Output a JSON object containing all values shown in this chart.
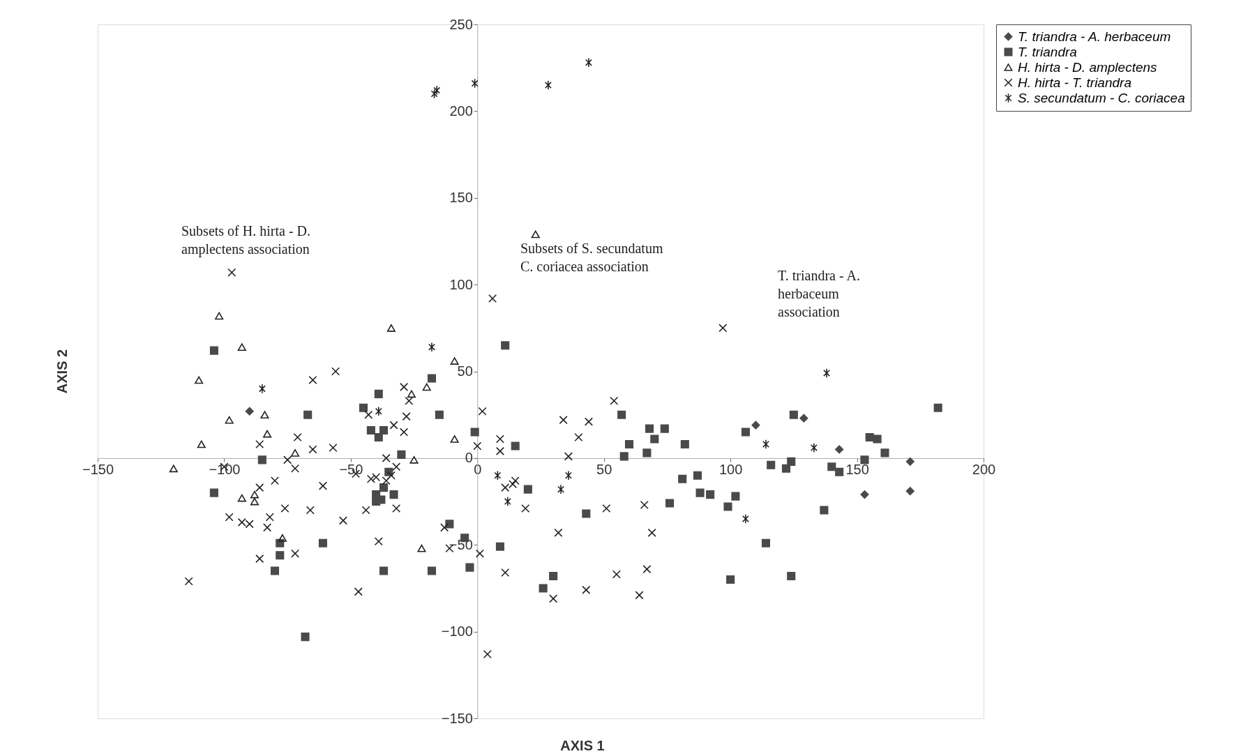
{
  "chart_data": {
    "type": "scatter",
    "xlabel": "AXIS 1",
    "ylabel": "AXIS 2",
    "xlim": [
      -150,
      200
    ],
    "ylim": [
      -150,
      250
    ],
    "xticks": [
      -150,
      -100,
      -50,
      0,
      50,
      100,
      150,
      200
    ],
    "yticks": [
      -150,
      -100,
      -50,
      0,
      50,
      100,
      150,
      200,
      250
    ],
    "grid": false,
    "legend": "right",
    "annotations": [
      "Subsets of H. hirta - D. amplectens association",
      "Subsets of S. secundatum C. coriacea association",
      "T. triandra - A. herbaceum association"
    ],
    "series": [
      {
        "name": "T. triandra - A. herbaceum",
        "color": "#4a4a4a",
        "marker": "diamond",
        "x": [
          -90,
          110,
          129,
          143,
          153,
          171,
          171
        ],
        "values": [
          27,
          19,
          23,
          5,
          -21,
          -2,
          -19
        ]
      },
      {
        "name": "T. triandra",
        "color": "#4a4a4a",
        "marker": "square",
        "x": [
          -104,
          -39,
          -18,
          -67,
          -15,
          -45,
          -42,
          -39,
          -37,
          -85,
          -30,
          -104,
          -35,
          -37,
          -40,
          -40,
          -38,
          -33,
          -78,
          -78,
          -61,
          -80,
          -37,
          -18,
          -11,
          -5,
          -3,
          -1,
          -68,
          11,
          15,
          20,
          43,
          57,
          68,
          74,
          70,
          60,
          58,
          67,
          82,
          81,
          87,
          88,
          92,
          76,
          102,
          99,
          106,
          114,
          100,
          124,
          9,
          30,
          26,
          116,
          124,
          122,
          125,
          140,
          143,
          153,
          155,
          158,
          161,
          182,
          137
        ],
        "values": [
          62,
          37,
          46,
          25,
          25,
          29,
          16,
          12,
          16,
          -1,
          2,
          -20,
          -8,
          -17,
          -21,
          -25,
          -24,
          -21,
          -49,
          -56,
          -49,
          -65,
          -65,
          -65,
          -38,
          -46,
          -63,
          15,
          -103,
          65,
          7,
          -18,
          -32,
          25,
          17,
          17,
          11,
          8,
          1,
          3,
          8,
          -12,
          -10,
          -20,
          -21,
          -26,
          -22,
          -28,
          15,
          -49,
          -70,
          -68,
          -51,
          -68,
          -75,
          -4,
          -2,
          -6,
          25,
          -5,
          -8,
          -1,
          12,
          11,
          3,
          29,
          -30
        ]
      },
      {
        "name": "H. hirta - D. amplectens",
        "color": "#222222",
        "marker": "triangle",
        "x": [
          -102,
          -93,
          -110,
          -84,
          -98,
          -83,
          -109,
          -72,
          -120,
          -93,
          -88,
          -88,
          -77,
          -34,
          -9,
          -20,
          -26,
          -9,
          -25,
          -22,
          23
        ],
        "values": [
          82,
          64,
          45,
          25,
          22,
          14,
          8,
          3,
          -6,
          -23,
          -21,
          -25,
          -46,
          75,
          56,
          41,
          37,
          11,
          -1,
          -52,
          129
        ]
      },
      {
        "name": "H. hirta - T. triandra",
        "color": "#222222",
        "marker": "cross",
        "x": [
          -97,
          -114,
          -65,
          -56,
          -29,
          -27,
          -28,
          -29,
          -33,
          -43,
          -86,
          -71,
          -65,
          -57,
          -100,
          -80,
          -86,
          -72,
          -75,
          -61,
          -36,
          -32,
          -34,
          -48,
          -40,
          -42,
          -36,
          -76,
          -66,
          -44,
          -32,
          -53,
          -98,
          -93,
          -90,
          -82,
          -83,
          -72,
          -86,
          -39,
          -47,
          -13,
          -11,
          1,
          2,
          0,
          6,
          9,
          9,
          11,
          14,
          15,
          19,
          11,
          30,
          43,
          32,
          51,
          55,
          34,
          44,
          40,
          36,
          54,
          97,
          66,
          69,
          67,
          64,
          4
        ],
        "values": [
          107,
          -71,
          45,
          50,
          41,
          33,
          24,
          15,
          19,
          25,
          8,
          12,
          5,
          6,
          -5,
          -13,
          -17,
          -6,
          -1,
          -16,
          0,
          -5,
          -10,
          -9,
          -11,
          -12,
          -13,
          -29,
          -30,
          -30,
          -29,
          -36,
          -34,
          -37,
          -38,
          -34,
          -40,
          -55,
          -58,
          -48,
          -77,
          -40,
          -52,
          -55,
          27,
          7,
          92,
          11,
          4,
          -17,
          -15,
          -13,
          -29,
          -66,
          -81,
          -76,
          -43,
          -29,
          -67,
          22,
          21,
          12,
          1,
          33,
          75,
          -27,
          -43,
          -64,
          -79,
          -113
        ]
      },
      {
        "name": "S. secundatum - C. coriacea",
        "color": "#222222",
        "x": [
          -17,
          -16,
          -1,
          28,
          44,
          -85,
          -18,
          -39,
          8,
          36,
          33,
          12,
          114,
          106,
          133,
          138
        ],
        "values": [
          210,
          212,
          216,
          215,
          228,
          40,
          64,
          27,
          -10,
          -10,
          -18,
          -25,
          8,
          -35,
          6,
          49
        ]
      }
    ]
  }
}
